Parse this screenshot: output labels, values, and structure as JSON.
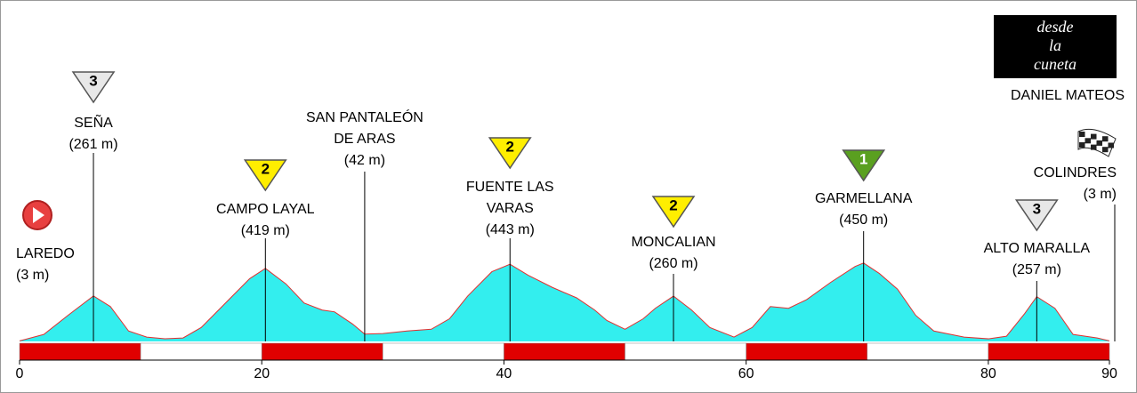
{
  "chart_data": {
    "type": "area",
    "color": "#33eeee",
    "line_color": "#e03030",
    "x": [
      0,
      2,
      4,
      6.1,
      7.5,
      9,
      10.5,
      12,
      13.5,
      15,
      17,
      19,
      20.3,
      22,
      23.5,
      25,
      26,
      27.5,
      28.5,
      30,
      32,
      34,
      35.5,
      37,
      39,
      40.5,
      42,
      44,
      46,
      47.5,
      48.5,
      50,
      51.5,
      52.5,
      54,
      55.5,
      57,
      59,
      60.5,
      62,
      63.5,
      65,
      67,
      69,
      69.7,
      71,
      72.5,
      74,
      75.5,
      78,
      80,
      81.5,
      83,
      84,
      85.5,
      87,
      89,
      90
    ],
    "series": [
      {
        "values": [
          3,
          40,
          150,
          261,
          200,
          60,
          25,
          15,
          20,
          80,
          220,
          360,
          419,
          330,
          220,
          180,
          170,
          100,
          42,
          45,
          60,
          70,
          130,
          260,
          400,
          443,
          380,
          310,
          250,
          180,
          120,
          70,
          130,
          190,
          260,
          180,
          80,
          25,
          80,
          200,
          190,
          240,
          340,
          430,
          450,
          390,
          300,
          150,
          60,
          25,
          15,
          30,
          160,
          257,
          190,
          40,
          20,
          3
        ]
      }
    ],
    "xlim": [
      0,
      90
    ],
    "xticks": [
      0,
      20,
      40,
      60,
      80,
      90
    ],
    "ylim": [
      0,
      1000
    ],
    "annotations": [
      {
        "km": 0,
        "name": [
          "LAREDO"
        ],
        "altitude": "(3 m)",
        "icon": "start"
      },
      {
        "km": 6.1,
        "name": [
          "SEÑA"
        ],
        "altitude": "(261 m)",
        "category": "3",
        "icon_color": "#e8e8e8"
      },
      {
        "km": 20.3,
        "name": [
          "CAMPO LAYAL"
        ],
        "altitude": "(419 m)",
        "category": "2",
        "icon_color": "#ffee00"
      },
      {
        "km": 28.5,
        "name": [
          "SAN PANTALEÓN",
          "DE ARAS"
        ],
        "altitude": "(42 m)"
      },
      {
        "km": 40.5,
        "name": [
          "FUENTE LAS",
          "VARAS"
        ],
        "altitude": "(443 m)",
        "category": "2",
        "icon_color": "#ffee00"
      },
      {
        "km": 54,
        "name": [
          "MONCALIAN"
        ],
        "altitude": "(260 m)",
        "category": "2",
        "icon_color": "#ffee00"
      },
      {
        "km": 69.7,
        "name": [
          "GARMELLANA"
        ],
        "altitude": "(450 m)",
        "category": "1",
        "icon_color": "#5aa020"
      },
      {
        "km": 84,
        "name": [
          "ALTO MARALLA"
        ],
        "altitude": "(257 m)",
        "category": "3",
        "icon_color": "#e8e8e8"
      },
      {
        "km": 90,
        "name": [
          "COLINDRES"
        ],
        "altitude": "(3 m)",
        "icon": "finish"
      }
    ],
    "logo_text": [
      "desde",
      "la",
      "cuneta"
    ],
    "author": "DANIEL MATEOS"
  }
}
